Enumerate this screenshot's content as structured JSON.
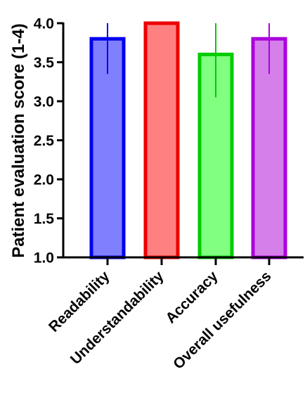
{
  "chart_data": {
    "type": "bar",
    "title": "",
    "xlabel": "",
    "ylabel": "Patient evaluation score (1-4)",
    "ylim": [
      1.0,
      4.0
    ],
    "yticks": [
      "1.0",
      "1.5",
      "2.0",
      "2.5",
      "3.0",
      "3.5",
      "4.0"
    ],
    "grid": false,
    "legend": "none",
    "categories": [
      "Readability",
      "Understandability",
      "Accuracy",
      "Overall usefulness"
    ],
    "values": [
      3.8,
      4.0,
      3.6,
      3.8
    ],
    "error_low": [
      3.35,
      4.0,
      3.05,
      3.35
    ],
    "error_high": [
      4.0,
      4.0,
      4.0,
      4.0
    ],
    "fill_colors": [
      "#8080FF",
      "#FF8080",
      "#80FF80",
      "#D57FEB"
    ],
    "stroke_colors": [
      "#0000EE",
      "#EE0000",
      "#00CC00",
      "#AA00DD"
    ]
  }
}
